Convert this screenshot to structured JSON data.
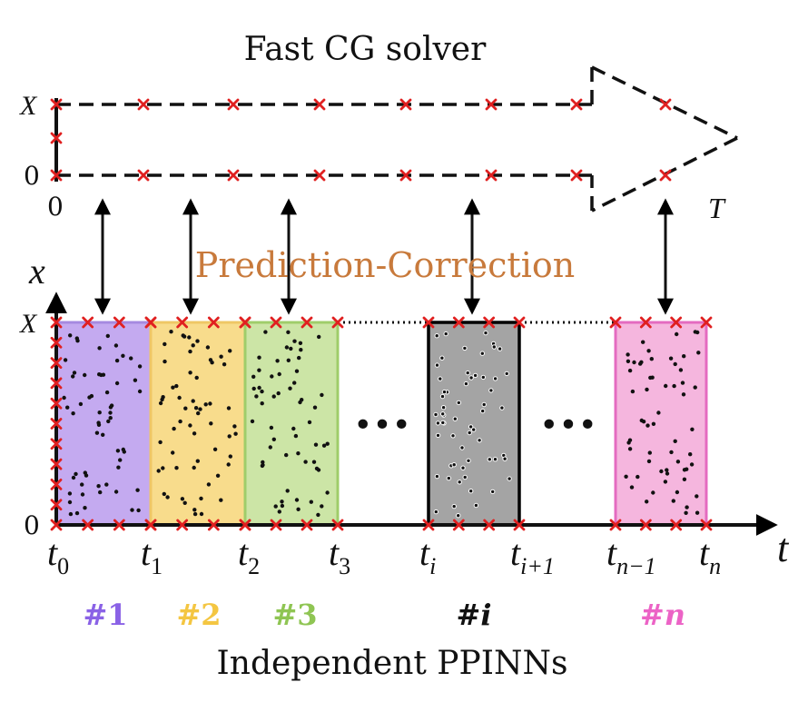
{
  "title": "Fast CG solver",
  "coarse_axis": {
    "y_top": "X",
    "y_bottom": "0",
    "x_start": "0",
    "x_end": "T"
  },
  "middle_label": "Prediction-Correction",
  "fine_axis": {
    "y_label": "x",
    "x_label": "t",
    "y_top": "X",
    "y_bottom": "0"
  },
  "ellipsis": "•••",
  "time_ticks": [
    {
      "base": "t",
      "sub": "0"
    },
    {
      "base": "t",
      "sub": "1"
    },
    {
      "base": "t",
      "sub": "2"
    },
    {
      "base": "t",
      "sub": "3"
    },
    {
      "base": "t",
      "sub": "i"
    },
    {
      "base": "t",
      "sub": "i+1"
    },
    {
      "base": "t",
      "sub": "n−1"
    },
    {
      "base": "t",
      "sub": "n"
    }
  ],
  "subdomains": [
    {
      "label": "#1",
      "fill": "#c4aaf0",
      "stroke": "#a68ae0",
      "label_color": "#8a62e6"
    },
    {
      "label": "#2",
      "fill": "#f8dc8c",
      "stroke": "#efc765",
      "label_color": "#f4c642"
    },
    {
      "label": "#3",
      "fill": "#cce5a6",
      "stroke": "#9fcd6a",
      "label_color": "#8fc553"
    },
    {
      "label": "#",
      "label_italic": "i",
      "fill": "#a4a4a4",
      "stroke": "#000000",
      "label_color": "#111111"
    },
    {
      "label": "#",
      "label_italic": "n",
      "fill": "#f5b6de",
      "stroke": "#e46bc0",
      "label_color": "#ec63c6"
    }
  ],
  "bottom_label": "Independent PPINNs",
  "colors": {
    "marker": "#e02020",
    "accent_text": "#c87a3c",
    "line": "#000000"
  }
}
